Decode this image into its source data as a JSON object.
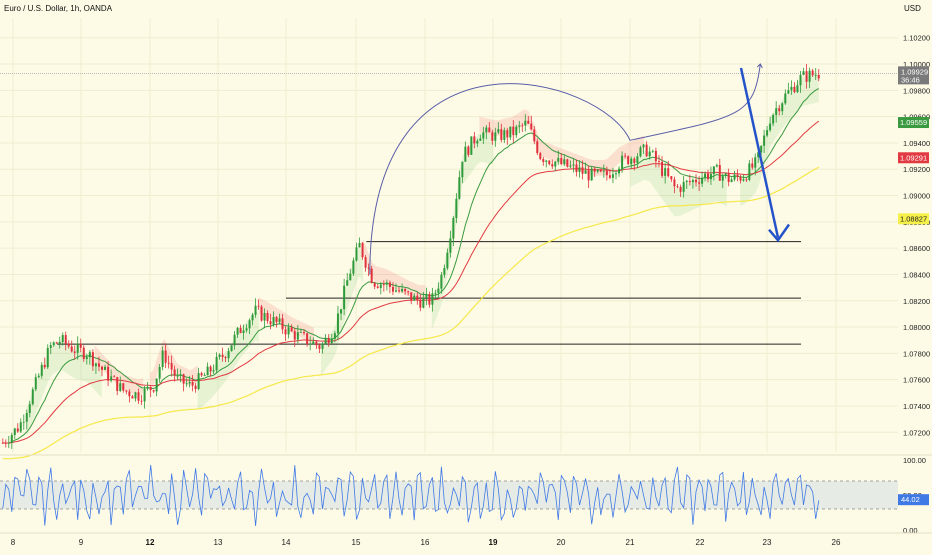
{
  "title": "Euro / U.S. Dollar, 1h, OANDA",
  "currency": "USD",
  "chart_data": {
    "type": "candlestick",
    "y_range": [
      1.0705,
      1.1035
    ],
    "y_ticks": [
      "1.10200",
      "1.10000",
      "1.09800",
      "1.09600",
      "1.09400",
      "1.09200",
      "1.09000",
      "1.08800",
      "1.08600",
      "1.08400",
      "1.08200",
      "1.08000",
      "1.07800",
      "1.07600",
      "1.07400",
      "1.07200"
    ],
    "x_labels": [
      {
        "t": 0,
        "label": "8",
        "bold": false
      },
      {
        "t": 1,
        "label": "9",
        "bold": false
      },
      {
        "t": 2,
        "label": "12",
        "bold": true
      },
      {
        "t": 3,
        "label": "13",
        "bold": false
      },
      {
        "t": 4,
        "label": "14",
        "bold": false
      },
      {
        "t": 5,
        "label": "15",
        "bold": false
      },
      {
        "t": 6,
        "label": "16",
        "bold": false
      },
      {
        "t": 7,
        "label": "19",
        "bold": true
      },
      {
        "t": 8,
        "label": "20",
        "bold": false
      },
      {
        "t": 9,
        "label": "21",
        "bold": false
      },
      {
        "t": 10,
        "label": "22",
        "bold": false
      },
      {
        "t": 11,
        "label": "23",
        "bold": false
      },
      {
        "t": 12,
        "label": "26",
        "bold": false
      }
    ],
    "price_path": [
      [
        -0.15,
        1.0712
      ],
      [
        0.1,
        1.0725
      ],
      [
        0.3,
        1.0752
      ],
      [
        0.55,
        1.0785
      ],
      [
        0.7,
        1.079
      ],
      [
        0.9,
        1.0783
      ],
      [
        1.1,
        1.078
      ],
      [
        1.3,
        1.0768
      ],
      [
        1.6,
        1.0752
      ],
      [
        1.85,
        1.0748
      ],
      [
        2.05,
        1.0755
      ],
      [
        2.2,
        1.078
      ],
      [
        2.4,
        1.076
      ],
      [
        2.6,
        1.0755
      ],
      [
        2.85,
        1.0765
      ],
      [
        3.1,
        1.078
      ],
      [
        3.35,
        1.08
      ],
      [
        3.55,
        1.0812
      ],
      [
        3.8,
        1.0805
      ],
      [
        4.1,
        1.0795
      ],
      [
        4.3,
        1.079
      ],
      [
        4.5,
        1.0785
      ],
      [
        4.7,
        1.08
      ],
      [
        4.9,
        1.084
      ],
      [
        5.05,
        1.0862
      ],
      [
        5.25,
        1.0835
      ],
      [
        5.45,
        1.0832
      ],
      [
        5.7,
        1.0825
      ],
      [
        5.9,
        1.082
      ],
      [
        6.1,
        1.082
      ],
      [
        6.25,
        1.084
      ],
      [
        6.4,
        1.088
      ],
      [
        6.55,
        1.093
      ],
      [
        6.8,
        1.0948
      ],
      [
        7.05,
        1.0945
      ],
      [
        7.3,
        1.0948
      ],
      [
        7.5,
        1.0955
      ],
      [
        7.7,
        1.093
      ],
      [
        7.95,
        1.0925
      ],
      [
        8.2,
        1.092
      ],
      [
        8.45,
        1.0915
      ],
      [
        8.65,
        1.0915
      ],
      [
        8.85,
        1.0925
      ],
      [
        9.05,
        1.093
      ],
      [
        9.25,
        1.0935
      ],
      [
        9.45,
        1.092
      ],
      [
        9.65,
        1.0905
      ],
      [
        9.85,
        1.091
      ],
      [
        10.05,
        1.0915
      ],
      [
        10.25,
        1.0918
      ],
      [
        10.45,
        1.0912
      ],
      [
        10.65,
        1.0915
      ],
      [
        10.85,
        1.0925
      ],
      [
        11.05,
        1.096
      ],
      [
        11.25,
        1.0975
      ],
      [
        11.5,
        1.099
      ],
      [
        11.75,
        1.0993
      ]
    ],
    "current_price": "1.09929",
    "countdown": "36:46",
    "price_tags": [
      {
        "name": "ema-fast",
        "value": "1.09559",
        "color": "#3a9a3f"
      },
      {
        "name": "ema-mid",
        "value": "1.09291",
        "color": "#e23a42"
      },
      {
        "name": "ema-slow",
        "value": "1.08827",
        "color": "#f6f04a"
      }
    ],
    "horizontal_levels": [
      1.0865,
      1.0822,
      1.0787
    ],
    "oscillator": {
      "range": [
        0,
        100
      ],
      "ticks": [
        "100.00",
        "50.00",
        "0.00"
      ],
      "value": "44.02",
      "band": [
        30,
        70
      ]
    }
  }
}
